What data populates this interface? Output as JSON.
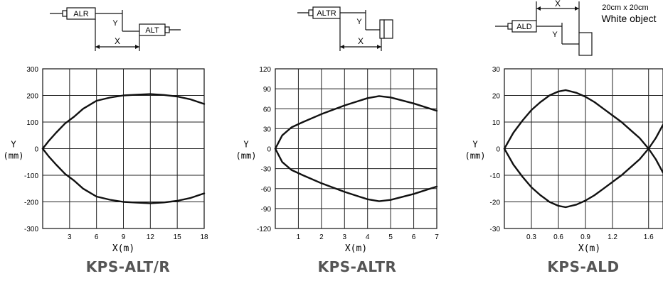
{
  "panels": [
    {
      "caption": "KPS-ALT/R",
      "diagram": {
        "emitter": "ALR",
        "receiver": "ALT",
        "x_label": "X",
        "y_label": "Y"
      },
      "chart_data": {
        "type": "line",
        "xlabel": "X(m)",
        "ylabel": "Y",
        "yunit": "(mm)",
        "xlim": [
          0,
          18
        ],
        "ylim": [
          -300,
          300
        ],
        "xticks": [
          3,
          6,
          9,
          12,
          15,
          18
        ],
        "yticks": [
          -300,
          -200,
          -100,
          0,
          100,
          200,
          300
        ],
        "ytick_labels": [
          "-300",
          "-200",
          "-100",
          "0",
          "100",
          "200",
          "300"
        ],
        "grid": true,
        "series": [
          {
            "x": [
              0,
              0.7,
              1.5,
              2.5,
              3.5,
              4.5,
              6,
              7.5,
              9,
              10.5,
              12,
              13.5,
              15,
              16.5,
              18
            ],
            "y": [
              0,
              30,
              60,
              95,
              120,
              150,
              180,
              192,
              200,
              203,
              205,
              202,
              196,
              185,
              168
            ]
          },
          {
            "x": [
              0,
              0.7,
              1.5,
              2.5,
              3.5,
              4.5,
              6,
              7.5,
              9,
              10.5,
              12,
              13.5,
              15,
              16.5,
              18
            ],
            "y": [
              0,
              -30,
              -60,
              -95,
              -120,
              -150,
              -180,
              -192,
              -200,
              -203,
              -205,
              -202,
              -196,
              -185,
              -168
            ]
          }
        ]
      }
    },
    {
      "caption": "KPS-ALTR",
      "diagram": {
        "emitter": "ALTR",
        "x_label": "X",
        "y_label": "Y"
      },
      "chart_data": {
        "type": "line",
        "xlabel": "X(m)",
        "ylabel": "Y",
        "yunit": "(mm)",
        "xlim": [
          0,
          7
        ],
        "ylim": [
          -120,
          120
        ],
        "xticks": [
          1,
          2,
          3,
          4,
          5,
          6,
          7
        ],
        "yticks": [
          -120,
          -90,
          -60,
          -30,
          0,
          30,
          60,
          90,
          120
        ],
        "ytick_labels": [
          "-120",
          "-90",
          "-60",
          "-30",
          "0",
          "30",
          "60",
          "90",
          "120"
        ],
        "grid": true,
        "series": [
          {
            "x": [
              0,
              0.3,
              0.7,
              1.2,
              2,
              3,
              4,
              4.5,
              5,
              6,
              7
            ],
            "y": [
              0,
              20,
              32,
              40,
              52,
              65,
              76,
              79,
              77,
              68,
              57
            ]
          },
          {
            "x": [
              0,
              0.3,
              0.7,
              1.2,
              2,
              3,
              4,
              4.5,
              5,
              6,
              7
            ],
            "y": [
              0,
              -20,
              -32,
              -40,
              -52,
              -65,
              -76,
              -79,
              -77,
              -68,
              -57
            ]
          }
        ]
      }
    },
    {
      "caption": "KPS-ALD",
      "diagram": {
        "emitter": "ALD",
        "object_size": "20cm x 20cm",
        "object_label": "White object",
        "x_label": "X",
        "y_label": "Y"
      },
      "chart_data": {
        "type": "line",
        "xlabel": "X(m)",
        "ylabel": "Y",
        "yunit": "(mm)",
        "xlim": [
          0,
          1.76
        ],
        "ylim": [
          -30,
          30
        ],
        "xticks": [
          0.3,
          0.6,
          0.9,
          1.2,
          1.6
        ],
        "yticks": [
          -30,
          -20,
          -10,
          0,
          10,
          20,
          30
        ],
        "ytick_labels": [
          "-30",
          "-20",
          "-10",
          "0",
          "10",
          "20",
          "30"
        ],
        "grid": true,
        "series": [
          {
            "x": [
              0,
              0.1,
              0.2,
              0.3,
              0.4,
              0.5,
              0.6,
              0.68,
              0.8,
              0.9,
              1.0,
              1.1,
              1.2,
              1.3,
              1.4,
              1.5,
              1.6,
              1.68,
              1.76
            ],
            "y": [
              0,
              6,
              10.5,
              14.5,
              17.5,
              20,
              21.5,
              22,
              21,
              19.5,
              17.5,
              15,
              12.5,
              10,
              7,
              4,
              0,
              4,
              9
            ]
          },
          {
            "x": [
              0,
              0.1,
              0.2,
              0.3,
              0.4,
              0.5,
              0.6,
              0.68,
              0.8,
              0.9,
              1.0,
              1.1,
              1.2,
              1.3,
              1.4,
              1.5,
              1.6,
              1.68,
              1.76
            ],
            "y": [
              0,
              -6,
              -10.5,
              -14.5,
              -17.5,
              -20,
              -21.5,
              -22,
              -21,
              -19.5,
              -17.5,
              -15,
              -12.5,
              -10,
              -7,
              -4,
              0,
              -4,
              -9
            ]
          }
        ]
      }
    }
  ]
}
